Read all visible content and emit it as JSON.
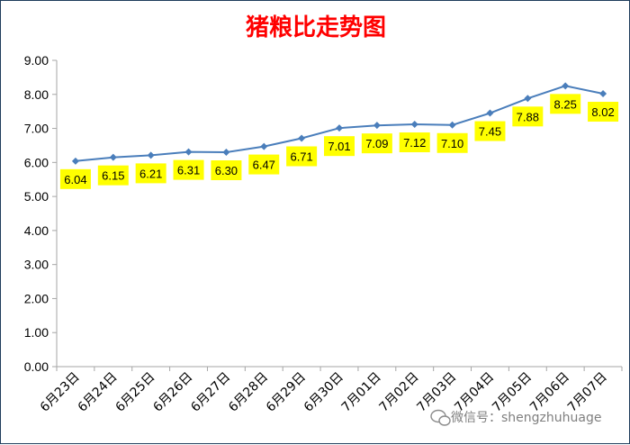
{
  "chart_data": {
    "type": "line",
    "title": "猪粮比走势图",
    "categories": [
      "6月23日",
      "6月24日",
      "6月25日",
      "6月26日",
      "6月27日",
      "6月28日",
      "6月29日",
      "6月30日",
      "7月01日",
      "7月02日",
      "7月03日",
      "7月04日",
      "7月05日",
      "7月06日",
      "7月07日"
    ],
    "series": [
      {
        "values": [
          6.04,
          6.15,
          6.21,
          6.31,
          6.3,
          6.47,
          6.71,
          7.01,
          7.09,
          7.12,
          7.1,
          7.45,
          7.88,
          8.25,
          8.02
        ]
      }
    ],
    "y_tick_labels": [
      "0.00",
      "1.00",
      "2.00",
      "3.00",
      "4.00",
      "5.00",
      "6.00",
      "7.00",
      "8.00",
      "9.00"
    ],
    "ylim": [
      0,
      9
    ],
    "xlabel": "",
    "ylabel": "",
    "grid": false,
    "legend": "none",
    "colors": {
      "line": "#4a7ebb",
      "label_bg": "#ffff00",
      "title": "#ff0000",
      "axis": "#a6a6a6"
    }
  },
  "watermark": {
    "text": "微信号：shengzhuhuage",
    "icon": "wechat-icon"
  }
}
